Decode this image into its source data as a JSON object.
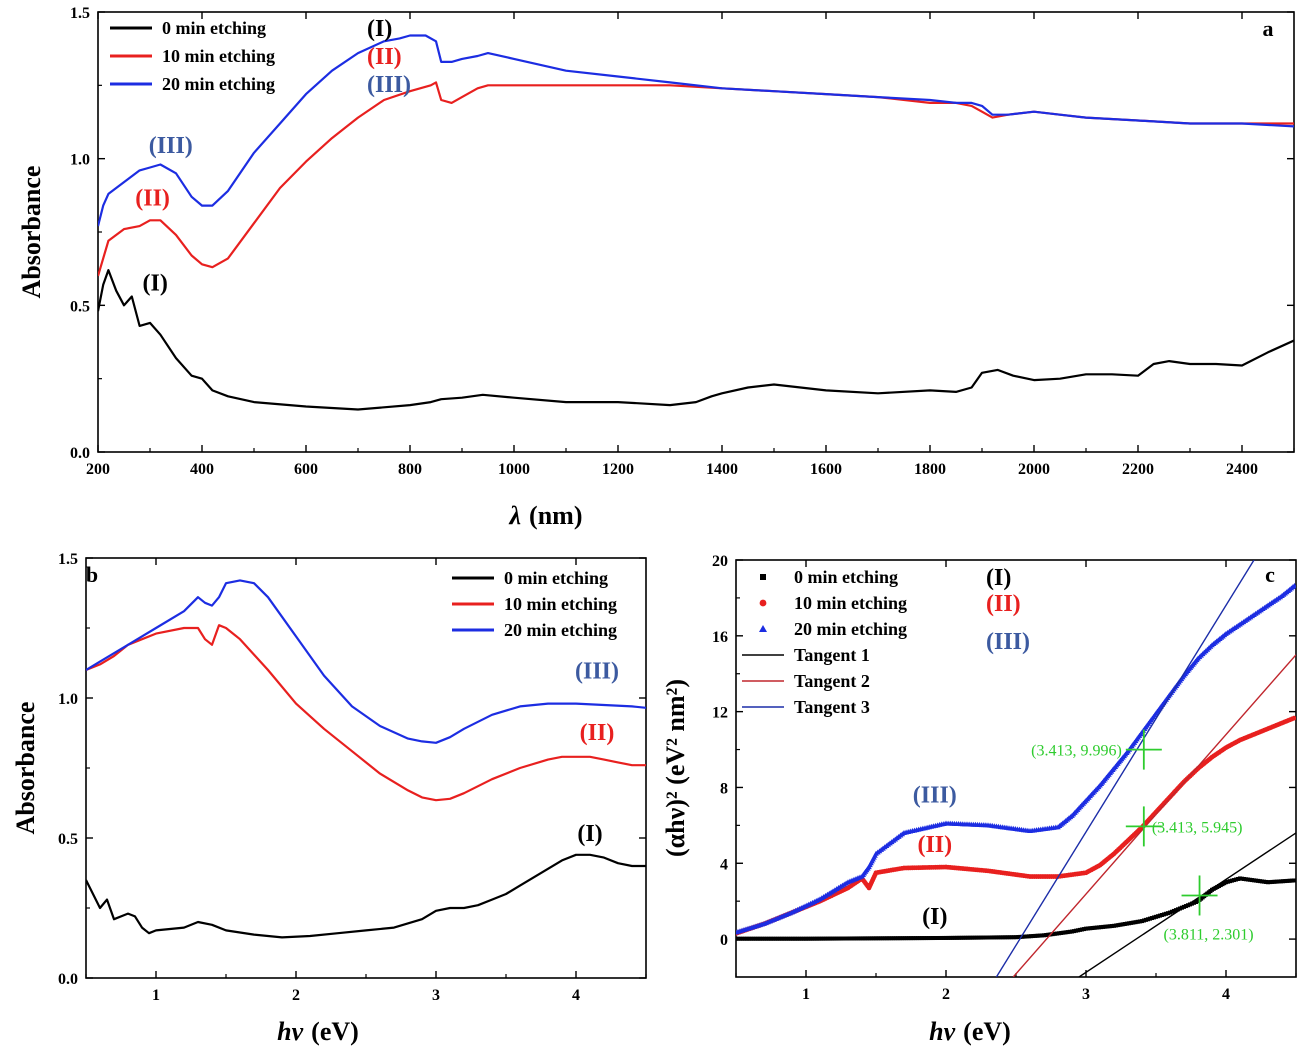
{
  "chart_data": [
    {
      "panel": "a",
      "type": "line",
      "xlabel_symbol": "λ",
      "xlabel_unit": "(nm)",
      "ylabel": "Absorbance",
      "xlim": [
        200,
        2500
      ],
      "ylim": [
        0,
        1.5
      ],
      "xticks": [
        200,
        400,
        600,
        800,
        1000,
        1200,
        1400,
        1600,
        1800,
        2000,
        2200,
        2400
      ],
      "yticks": [
        0.0,
        0.5,
        1.0,
        1.5
      ],
      "ytick_labels": [
        "0.0",
        "0.5",
        "1.0",
        "1.5"
      ],
      "legend_position": "top-left",
      "series": [
        {
          "name": "0 min  etching",
          "tag": "(I)",
          "color": "#000000",
          "x": [
            200,
            210,
            220,
            235,
            250,
            265,
            280,
            300,
            320,
            350,
            380,
            400,
            420,
            450,
            500,
            600,
            700,
            800,
            840,
            860,
            900,
            940,
            1000,
            1100,
            1200,
            1300,
            1350,
            1380,
            1400,
            1450,
            1500,
            1600,
            1700,
            1800,
            1850,
            1880,
            1900,
            1930,
            1960,
            2000,
            2050,
            2100,
            2150,
            2200,
            2230,
            2260,
            2300,
            2350,
            2400,
            2450,
            2500
          ],
          "y": [
            0.48,
            0.57,
            0.62,
            0.55,
            0.5,
            0.53,
            0.43,
            0.44,
            0.4,
            0.32,
            0.26,
            0.25,
            0.21,
            0.19,
            0.17,
            0.155,
            0.145,
            0.16,
            0.17,
            0.18,
            0.185,
            0.195,
            0.185,
            0.17,
            0.17,
            0.16,
            0.17,
            0.19,
            0.2,
            0.22,
            0.23,
            0.21,
            0.2,
            0.21,
            0.205,
            0.22,
            0.27,
            0.28,
            0.26,
            0.245,
            0.25,
            0.265,
            0.265,
            0.26,
            0.3,
            0.31,
            0.3,
            0.3,
            0.295,
            0.34,
            0.38
          ]
        },
        {
          "name": "10 min etching",
          "tag": "(II)",
          "color": "#e8201f",
          "x": [
            200,
            220,
            250,
            280,
            300,
            320,
            350,
            380,
            400,
            420,
            450,
            500,
            550,
            600,
            650,
            700,
            750,
            800,
            840,
            850,
            860,
            880,
            900,
            930,
            950,
            1000,
            1100,
            1200,
            1300,
            1400,
            1500,
            1600,
            1700,
            1800,
            1850,
            1880,
            1900,
            1920,
            1950,
            2000,
            2050,
            2100,
            2200,
            2300,
            2400,
            2500
          ],
          "y": [
            0.6,
            0.72,
            0.76,
            0.77,
            0.79,
            0.79,
            0.74,
            0.67,
            0.64,
            0.63,
            0.66,
            0.78,
            0.9,
            0.99,
            1.07,
            1.14,
            1.2,
            1.23,
            1.25,
            1.26,
            1.2,
            1.19,
            1.21,
            1.24,
            1.25,
            1.25,
            1.25,
            1.25,
            1.25,
            1.24,
            1.23,
            1.22,
            1.21,
            1.19,
            1.19,
            1.18,
            1.16,
            1.14,
            1.15,
            1.16,
            1.15,
            1.14,
            1.13,
            1.12,
            1.12,
            1.12
          ]
        },
        {
          "name": "20 min etching",
          "tag": "(III)",
          "color": "#1c2de2",
          "x": [
            200,
            210,
            220,
            250,
            280,
            300,
            320,
            350,
            380,
            400,
            420,
            450,
            500,
            550,
            600,
            650,
            700,
            750,
            780,
            800,
            830,
            850,
            860,
            880,
            900,
            930,
            950,
            1000,
            1100,
            1200,
            1300,
            1400,
            1500,
            1600,
            1700,
            1800,
            1850,
            1880,
            1900,
            1920,
            1950,
            2000,
            2050,
            2100,
            2200,
            2300,
            2400,
            2500
          ],
          "y": [
            0.77,
            0.84,
            0.88,
            0.92,
            0.96,
            0.97,
            0.98,
            0.95,
            0.87,
            0.84,
            0.84,
            0.89,
            1.02,
            1.12,
            1.22,
            1.3,
            1.36,
            1.4,
            1.41,
            1.42,
            1.42,
            1.4,
            1.33,
            1.33,
            1.34,
            1.35,
            1.36,
            1.34,
            1.3,
            1.28,
            1.26,
            1.24,
            1.23,
            1.22,
            1.21,
            1.2,
            1.19,
            1.19,
            1.18,
            1.15,
            1.15,
            1.16,
            1.15,
            1.14,
            1.13,
            1.12,
            1.12,
            1.11
          ]
        }
      ],
      "annotations": [
        {
          "text": "(III)",
          "x": 340,
          "y": 1.02,
          "color": "#3c5aa0"
        },
        {
          "text": "(II)",
          "x": 305,
          "y": 0.84,
          "color": "#e8201f"
        },
        {
          "text": "(I)",
          "x": 310,
          "y": 0.55,
          "color": "#000000"
        }
      ]
    },
    {
      "panel": "b",
      "type": "line",
      "xlabel_symbol": "hv",
      "xlabel_unit": "(eV)",
      "ylabel": "Absorbance",
      "xlim": [
        0.5,
        4.5
      ],
      "ylim": [
        0,
        1.5
      ],
      "xticks": [
        1,
        2,
        3,
        4
      ],
      "yticks": [
        0.0,
        0.5,
        1.0,
        1.5
      ],
      "ytick_labels": [
        "0.0",
        "0.5",
        "1.0",
        "1.5"
      ],
      "legend_position": "top-right",
      "series": [
        {
          "name": "0 min etching",
          "color": "#000000",
          "x": [
            0.5,
            0.55,
            0.6,
            0.65,
            0.7,
            0.8,
            0.85,
            0.9,
            0.95,
            1.0,
            1.2,
            1.3,
            1.4,
            1.5,
            1.7,
            1.9,
            2.1,
            2.3,
            2.5,
            2.7,
            2.9,
            3.0,
            3.1,
            3.2,
            3.3,
            3.4,
            3.5,
            3.6,
            3.7,
            3.8,
            3.9,
            4.0,
            4.1,
            4.2,
            4.3,
            4.4,
            4.5
          ],
          "y": [
            0.35,
            0.3,
            0.25,
            0.28,
            0.21,
            0.23,
            0.22,
            0.18,
            0.16,
            0.17,
            0.18,
            0.2,
            0.19,
            0.17,
            0.155,
            0.145,
            0.15,
            0.16,
            0.17,
            0.18,
            0.21,
            0.24,
            0.25,
            0.25,
            0.26,
            0.28,
            0.3,
            0.33,
            0.36,
            0.39,
            0.42,
            0.44,
            0.44,
            0.43,
            0.41,
            0.4,
            0.4
          ]
        },
        {
          "name": "10 min etching",
          "color": "#e8201f",
          "x": [
            0.5,
            0.6,
            0.7,
            0.8,
            1.0,
            1.2,
            1.3,
            1.35,
            1.4,
            1.45,
            1.5,
            1.6,
            1.8,
            2.0,
            2.2,
            2.4,
            2.6,
            2.8,
            2.9,
            3.0,
            3.1,
            3.2,
            3.4,
            3.6,
            3.8,
            3.9,
            4.0,
            4.1,
            4.2,
            4.3,
            4.4,
            4.5
          ],
          "y": [
            1.1,
            1.12,
            1.15,
            1.19,
            1.23,
            1.25,
            1.25,
            1.21,
            1.19,
            1.26,
            1.25,
            1.21,
            1.1,
            0.98,
            0.89,
            0.81,
            0.73,
            0.67,
            0.645,
            0.635,
            0.64,
            0.66,
            0.71,
            0.75,
            0.78,
            0.79,
            0.79,
            0.79,
            0.78,
            0.77,
            0.76,
            0.76
          ]
        },
        {
          "name": "20 min etching",
          "color": "#1c2de2",
          "x": [
            0.5,
            0.6,
            0.7,
            0.8,
            1.0,
            1.2,
            1.3,
            1.35,
            1.4,
            1.45,
            1.5,
            1.6,
            1.7,
            1.8,
            2.0,
            2.2,
            2.4,
            2.6,
            2.8,
            2.9,
            3.0,
            3.1,
            3.2,
            3.4,
            3.6,
            3.8,
            4.0,
            4.2,
            4.4,
            4.5
          ],
          "y": [
            1.1,
            1.13,
            1.16,
            1.19,
            1.25,
            1.31,
            1.36,
            1.34,
            1.33,
            1.36,
            1.41,
            1.42,
            1.41,
            1.36,
            1.22,
            1.08,
            0.97,
            0.9,
            0.855,
            0.845,
            0.84,
            0.86,
            0.89,
            0.94,
            0.97,
            0.98,
            0.98,
            0.975,
            0.97,
            0.965
          ]
        }
      ],
      "annotations": [
        {
          "text": "(III)",
          "x": 4.15,
          "y": 1.07,
          "color": "#3c5aa0"
        },
        {
          "text": "(II)",
          "x": 4.15,
          "y": 0.85,
          "color": "#e8201f"
        },
        {
          "text": "(I)",
          "x": 4.1,
          "y": 0.49,
          "color": "#000000"
        }
      ]
    },
    {
      "panel": "c",
      "type": "scatter",
      "xlabel_symbol": "hv",
      "xlabel_unit": "(eV)",
      "ylabel": "(αhν)² (eV² nm²)",
      "xlim": [
        0.5,
        4.5
      ],
      "ylim": [
        -2,
        20
      ],
      "xticks": [
        1,
        2,
        3,
        4
      ],
      "yticks": [
        0,
        4,
        8,
        12,
        16,
        20
      ],
      "ytick_labels": [
        "0",
        "4",
        "8",
        "12",
        "16",
        "20"
      ],
      "legend_position": "top-left",
      "series": [
        {
          "name": "0 min etching",
          "tag": "(I)",
          "color": "#000000",
          "marker": "square",
          "x": [
            0.5,
            1.0,
            1.5,
            2.0,
            2.5,
            2.7,
            2.9,
            3.0,
            3.2,
            3.4,
            3.6,
            3.8,
            3.9,
            4.0,
            4.1,
            4.2,
            4.3,
            4.5
          ],
          "y": [
            0.02,
            0.02,
            0.04,
            0.06,
            0.1,
            0.2,
            0.4,
            0.55,
            0.7,
            0.95,
            1.4,
            2.0,
            2.6,
            3.0,
            3.2,
            3.1,
            3.0,
            3.1
          ]
        },
        {
          "name": "10 min etching",
          "tag": "(II)",
          "color": "#e8201f",
          "marker": "circle",
          "x": [
            0.5,
            0.7,
            0.9,
            1.1,
            1.3,
            1.4,
            1.45,
            1.5,
            1.7,
            2.0,
            2.3,
            2.6,
            2.8,
            3.0,
            3.1,
            3.2,
            3.3,
            3.4,
            3.5,
            3.6,
            3.7,
            3.8,
            3.9,
            4.0,
            4.1,
            4.2,
            4.3,
            4.4,
            4.5
          ],
          "y": [
            0.3,
            0.8,
            1.4,
            2.0,
            2.7,
            3.2,
            2.7,
            3.5,
            3.75,
            3.8,
            3.6,
            3.3,
            3.3,
            3.5,
            3.9,
            4.5,
            5.2,
            5.9,
            6.7,
            7.5,
            8.3,
            9.0,
            9.6,
            10.1,
            10.5,
            10.8,
            11.1,
            11.4,
            11.7
          ]
        },
        {
          "name": "20 min etching",
          "tag": "(III)",
          "color": "#1c2de2",
          "marker": "triangle",
          "x": [
            0.5,
            0.7,
            0.9,
            1.1,
            1.3,
            1.4,
            1.45,
            1.5,
            1.7,
            2.0,
            2.3,
            2.6,
            2.8,
            2.9,
            3.0,
            3.1,
            3.2,
            3.3,
            3.4,
            3.5,
            3.6,
            3.7,
            3.8,
            3.9,
            4.0,
            4.1,
            4.2,
            4.3,
            4.4,
            4.5
          ],
          "y": [
            0.35,
            0.8,
            1.4,
            2.1,
            3.0,
            3.3,
            3.8,
            4.5,
            5.6,
            6.1,
            6.0,
            5.7,
            5.9,
            6.5,
            7.3,
            8.1,
            9.0,
            9.9,
            10.9,
            11.9,
            12.9,
            13.9,
            14.8,
            15.5,
            16.1,
            16.6,
            17.1,
            17.6,
            18.1,
            18.7
          ]
        },
        {
          "name": "Tangent 1",
          "color": "#000000",
          "type": "line",
          "x": [
            2.95,
            4.5
          ],
          "y": [
            -2.0,
            5.6
          ]
        },
        {
          "name": "Tangent 2",
          "color": "#c0262d",
          "type": "line",
          "x": [
            2.48,
            4.5
          ],
          "y": [
            -2.0,
            15.0
          ]
        },
        {
          "name": "Tangent 3",
          "color": "#1c2da8",
          "type": "line",
          "x": [
            2.36,
            4.2
          ],
          "y": [
            -2.0,
            20.0
          ]
        }
      ],
      "points": [
        {
          "x": 3.413,
          "y": 9.996,
          "label": "(3.413, 9.996)",
          "label_side": "left"
        },
        {
          "x": 3.413,
          "y": 5.945,
          "label": "(3.413, 5.945)",
          "label_side": "right"
        },
        {
          "x": 3.811,
          "y": 2.301,
          "label": "(3.811, 2.301)",
          "label_side": "below-right"
        }
      ],
      "annotations": [
        {
          "text": "(III)",
          "x": 1.92,
          "y": 7.2,
          "color": "#3c5aa0"
        },
        {
          "text": "(II)",
          "x": 1.92,
          "y": 4.6,
          "color": "#e8201f"
        },
        {
          "text": "(I)",
          "x": 1.92,
          "y": 0.8,
          "color": "#000000"
        }
      ]
    }
  ]
}
